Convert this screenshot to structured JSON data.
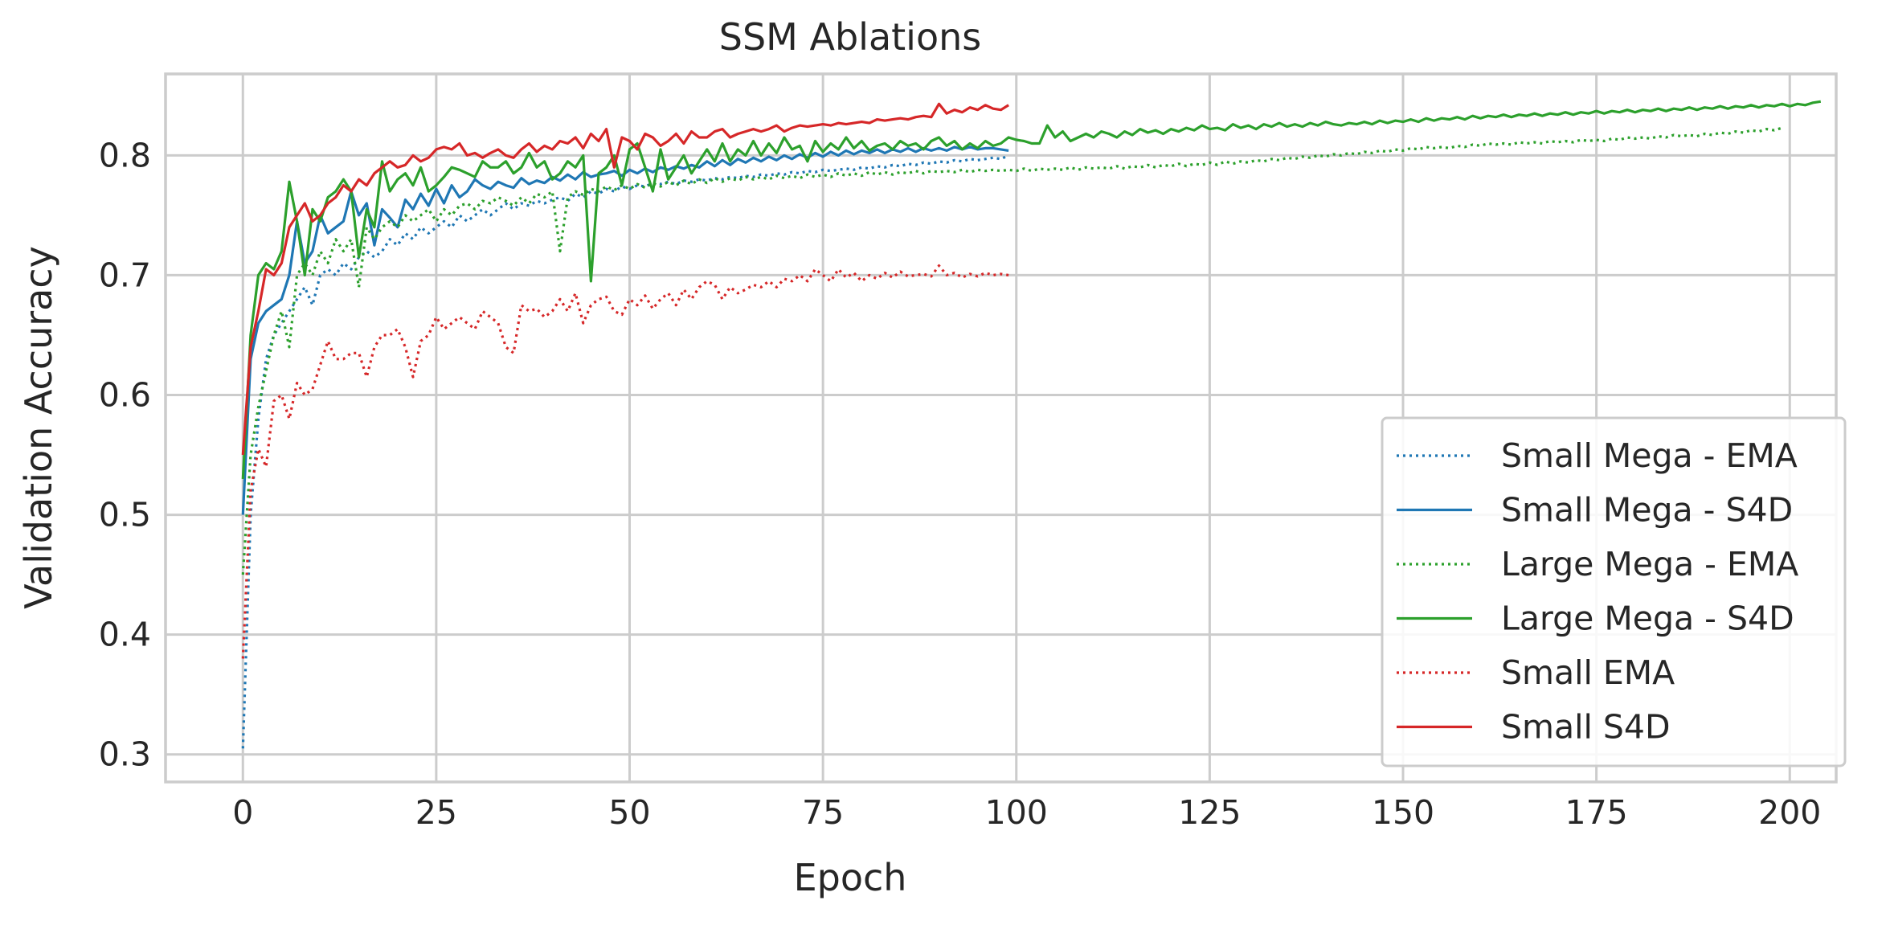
{
  "chart_data": {
    "type": "line",
    "title": "SSM Ablations",
    "xlabel": "Epoch",
    "ylabel": "Validation Accuracy",
    "xlim": [
      -10,
      206
    ],
    "ylim": [
      0.277,
      0.868
    ],
    "xticks": [
      0,
      25,
      50,
      75,
      100,
      125,
      150,
      175,
      200
    ],
    "yticks": [
      0.3,
      0.4,
      0.5,
      0.6,
      0.7,
      0.8
    ],
    "ytick_labels": [
      "0.3",
      "0.4",
      "0.5",
      "0.6",
      "0.7",
      "0.8"
    ],
    "grid": true,
    "legend_position": "lower-right",
    "series": [
      {
        "name": "Small Mega - EMA",
        "color": "#1f77b4",
        "style": "dotted",
        "x_start": 0,
        "values": [
          0.305,
          0.5,
          0.58,
          0.63,
          0.65,
          0.66,
          0.67,
          0.68,
          0.69,
          0.675,
          0.7,
          0.705,
          0.7,
          0.71,
          0.705,
          0.715,
          0.72,
          0.715,
          0.72,
          0.73,
          0.725,
          0.735,
          0.73,
          0.74,
          0.735,
          0.74,
          0.745,
          0.74,
          0.75,
          0.745,
          0.75,
          0.755,
          0.75,
          0.755,
          0.76,
          0.755,
          0.76,
          0.758,
          0.762,
          0.76,
          0.763,
          0.765,
          0.762,
          0.768,
          0.765,
          0.77,
          0.768,
          0.772,
          0.77,
          0.774,
          0.772,
          0.775,
          0.774,
          0.777,
          0.776,
          0.778,
          0.776,
          0.779,
          0.778,
          0.78,
          0.779,
          0.781,
          0.78,
          0.782,
          0.781,
          0.783,
          0.782,
          0.784,
          0.783,
          0.785,
          0.784,
          0.786,
          0.785,
          0.787,
          0.786,
          0.788,
          0.787,
          0.788,
          0.789,
          0.788,
          0.79,
          0.789,
          0.791,
          0.79,
          0.792,
          0.791,
          0.793,
          0.792,
          0.794,
          0.793,
          0.795,
          0.794,
          0.796,
          0.795,
          0.797,
          0.796,
          0.797,
          0.798,
          0.797,
          0.8
        ]
      },
      {
        "name": "Small Mega - S4D",
        "color": "#1f77b4",
        "style": "solid",
        "x_start": 0,
        "values": [
          0.5,
          0.63,
          0.66,
          0.67,
          0.675,
          0.68,
          0.7,
          0.745,
          0.71,
          0.72,
          0.75,
          0.735,
          0.74,
          0.745,
          0.77,
          0.75,
          0.76,
          0.725,
          0.755,
          0.748,
          0.74,
          0.763,
          0.755,
          0.768,
          0.758,
          0.772,
          0.76,
          0.775,
          0.765,
          0.77,
          0.78,
          0.775,
          0.772,
          0.778,
          0.775,
          0.773,
          0.781,
          0.776,
          0.779,
          0.777,
          0.782,
          0.779,
          0.784,
          0.78,
          0.786,
          0.782,
          0.784,
          0.785,
          0.787,
          0.783,
          0.788,
          0.785,
          0.789,
          0.786,
          0.79,
          0.788,
          0.791,
          0.789,
          0.792,
          0.79,
          0.795,
          0.791,
          0.796,
          0.792,
          0.797,
          0.794,
          0.798,
          0.795,
          0.799,
          0.796,
          0.8,
          0.797,
          0.801,
          0.798,
          0.802,
          0.799,
          0.803,
          0.8,
          0.804,
          0.801,
          0.804,
          0.802,
          0.805,
          0.802,
          0.805,
          0.803,
          0.806,
          0.803,
          0.806,
          0.804,
          0.806,
          0.804,
          0.807,
          0.805,
          0.807,
          0.805,
          0.806,
          0.806,
          0.805,
          0.804
        ]
      },
      {
        "name": "Large Mega - EMA",
        "color": "#2ca02c",
        "style": "dotted",
        "x_start": 0,
        "values": [
          0.45,
          0.55,
          0.59,
          0.62,
          0.65,
          0.67,
          0.64,
          0.7,
          0.71,
          0.7,
          0.72,
          0.71,
          0.73,
          0.72,
          0.73,
          0.69,
          0.74,
          0.73,
          0.74,
          0.745,
          0.74,
          0.75,
          0.745,
          0.75,
          0.755,
          0.745,
          0.755,
          0.75,
          0.758,
          0.76,
          0.755,
          0.762,
          0.76,
          0.765,
          0.762,
          0.758,
          0.765,
          0.76,
          0.768,
          0.765,
          0.77,
          0.72,
          0.765,
          0.77,
          0.767,
          0.772,
          0.77,
          0.774,
          0.771,
          0.775,
          0.772,
          0.776,
          0.773,
          0.777,
          0.774,
          0.778,
          0.775,
          0.779,
          0.776,
          0.78,
          0.777,
          0.781,
          0.778,
          0.781,
          0.779,
          0.782,
          0.78,
          0.782,
          0.78,
          0.783,
          0.781,
          0.783,
          0.781,
          0.784,
          0.782,
          0.784,
          0.782,
          0.785,
          0.783,
          0.785,
          0.783,
          0.786,
          0.784,
          0.786,
          0.784,
          0.786,
          0.785,
          0.787,
          0.785,
          0.787,
          0.786,
          0.787,
          0.786,
          0.788,
          0.786,
          0.788,
          0.787,
          0.788,
          0.787,
          0.788,
          0.787,
          0.789,
          0.787,
          0.789,
          0.788,
          0.789,
          0.788,
          0.79,
          0.788,
          0.79,
          0.789,
          0.79,
          0.789,
          0.791,
          0.789,
          0.791,
          0.79,
          0.792,
          0.79,
          0.792,
          0.791,
          0.793,
          0.791,
          0.793,
          0.792,
          0.794,
          0.792,
          0.795,
          0.793,
          0.795,
          0.794,
          0.796,
          0.795,
          0.797,
          0.796,
          0.798,
          0.797,
          0.799,
          0.798,
          0.8,
          0.799,
          0.801,
          0.8,
          0.802,
          0.801,
          0.803,
          0.802,
          0.804,
          0.803,
          0.805,
          0.804,
          0.806,
          0.805,
          0.807,
          0.806,
          0.807,
          0.806,
          0.808,
          0.807,
          0.809,
          0.808,
          0.81,
          0.809,
          0.81,
          0.809,
          0.811,
          0.81,
          0.811,
          0.81,
          0.812,
          0.811,
          0.812,
          0.811,
          0.813,
          0.812,
          0.813,
          0.812,
          0.814,
          0.813,
          0.815,
          0.814,
          0.815,
          0.814,
          0.816,
          0.815,
          0.817,
          0.816,
          0.817,
          0.816,
          0.818,
          0.817,
          0.819,
          0.818,
          0.82,
          0.819,
          0.821,
          0.82,
          0.822,
          0.821,
          0.823
        ]
      },
      {
        "name": "Large Mega - S4D",
        "color": "#2ca02c",
        "style": "solid",
        "x_start": 0,
        "values": [
          0.53,
          0.65,
          0.7,
          0.71,
          0.705,
          0.72,
          0.778,
          0.745,
          0.7,
          0.755,
          0.745,
          0.765,
          0.77,
          0.78,
          0.77,
          0.715,
          0.755,
          0.74,
          0.795,
          0.77,
          0.78,
          0.785,
          0.775,
          0.79,
          0.77,
          0.775,
          0.782,
          0.79,
          0.788,
          0.785,
          0.782,
          0.795,
          0.79,
          0.79,
          0.795,
          0.785,
          0.79,
          0.802,
          0.79,
          0.795,
          0.78,
          0.785,
          0.795,
          0.79,
          0.8,
          0.695,
          0.785,
          0.79,
          0.8,
          0.775,
          0.805,
          0.81,
          0.79,
          0.77,
          0.805,
          0.78,
          0.79,
          0.8,
          0.785,
          0.795,
          0.805,
          0.795,
          0.81,
          0.795,
          0.805,
          0.8,
          0.812,
          0.8,
          0.81,
          0.802,
          0.815,
          0.805,
          0.808,
          0.795,
          0.812,
          0.803,
          0.81,
          0.805,
          0.815,
          0.806,
          0.812,
          0.804,
          0.808,
          0.81,
          0.805,
          0.812,
          0.808,
          0.81,
          0.805,
          0.812,
          0.815,
          0.808,
          0.812,
          0.805,
          0.81,
          0.806,
          0.812,
          0.808,
          0.81,
          0.815,
          0.813,
          0.812,
          0.81,
          0.81,
          0.825,
          0.815,
          0.82,
          0.812,
          0.815,
          0.818,
          0.815,
          0.82,
          0.818,
          0.815,
          0.82,
          0.817,
          0.822,
          0.819,
          0.821,
          0.818,
          0.822,
          0.82,
          0.823,
          0.821,
          0.825,
          0.822,
          0.823,
          0.821,
          0.826,
          0.823,
          0.825,
          0.822,
          0.826,
          0.824,
          0.827,
          0.824,
          0.826,
          0.824,
          0.827,
          0.825,
          0.828,
          0.826,
          0.825,
          0.827,
          0.826,
          0.828,
          0.826,
          0.829,
          0.827,
          0.829,
          0.828,
          0.83,
          0.828,
          0.831,
          0.829,
          0.831,
          0.83,
          0.832,
          0.83,
          0.833,
          0.831,
          0.833,
          0.832,
          0.834,
          0.832,
          0.834,
          0.833,
          0.835,
          0.833,
          0.835,
          0.834,
          0.836,
          0.834,
          0.836,
          0.835,
          0.837,
          0.835,
          0.837,
          0.836,
          0.838,
          0.836,
          0.838,
          0.837,
          0.839,
          0.837,
          0.839,
          0.838,
          0.84,
          0.838,
          0.84,
          0.839,
          0.841,
          0.839,
          0.841,
          0.84,
          0.842,
          0.84,
          0.842,
          0.841,
          0.843,
          0.841,
          0.843,
          0.842,
          0.844,
          0.845
        ]
      },
      {
        "name": "Small EMA",
        "color": "#d62728",
        "style": "dotted",
        "x_start": 0,
        "values": [
          0.38,
          0.52,
          0.555,
          0.54,
          0.595,
          0.6,
          0.58,
          0.61,
          0.6,
          0.605,
          0.625,
          0.645,
          0.63,
          0.63,
          0.635,
          0.635,
          0.615,
          0.64,
          0.65,
          0.65,
          0.655,
          0.64,
          0.615,
          0.645,
          0.65,
          0.665,
          0.655,
          0.66,
          0.665,
          0.66,
          0.655,
          0.67,
          0.665,
          0.66,
          0.64,
          0.635,
          0.675,
          0.67,
          0.672,
          0.665,
          0.67,
          0.68,
          0.67,
          0.685,
          0.66,
          0.675,
          0.68,
          0.682,
          0.67,
          0.667,
          0.68,
          0.675,
          0.683,
          0.672,
          0.68,
          0.685,
          0.675,
          0.688,
          0.68,
          0.69,
          0.695,
          0.692,
          0.68,
          0.69,
          0.685,
          0.688,
          0.692,
          0.69,
          0.695,
          0.69,
          0.697,
          0.695,
          0.7,
          0.695,
          0.705,
          0.7,
          0.695,
          0.705,
          0.698,
          0.702,
          0.695,
          0.7,
          0.697,
          0.702,
          0.698,
          0.703,
          0.699,
          0.7,
          0.701,
          0.699,
          0.708,
          0.7,
          0.702,
          0.698,
          0.701,
          0.699,
          0.702,
          0.7,
          0.701,
          0.7
        ]
      },
      {
        "name": "Small S4D",
        "color": "#d62728",
        "style": "solid",
        "x_start": 0,
        "values": [
          0.55,
          0.64,
          0.67,
          0.705,
          0.7,
          0.71,
          0.74,
          0.75,
          0.76,
          0.745,
          0.75,
          0.76,
          0.765,
          0.775,
          0.77,
          0.78,
          0.775,
          0.785,
          0.79,
          0.795,
          0.79,
          0.792,
          0.8,
          0.795,
          0.798,
          0.805,
          0.807,
          0.805,
          0.81,
          0.8,
          0.802,
          0.798,
          0.802,
          0.805,
          0.8,
          0.798,
          0.805,
          0.81,
          0.803,
          0.808,
          0.805,
          0.812,
          0.81,
          0.815,
          0.806,
          0.818,
          0.812,
          0.822,
          0.79,
          0.815,
          0.812,
          0.805,
          0.818,
          0.815,
          0.808,
          0.812,
          0.818,
          0.81,
          0.82,
          0.815,
          0.815,
          0.82,
          0.822,
          0.815,
          0.818,
          0.82,
          0.822,
          0.82,
          0.822,
          0.825,
          0.82,
          0.823,
          0.825,
          0.824,
          0.825,
          0.826,
          0.825,
          0.827,
          0.826,
          0.827,
          0.828,
          0.827,
          0.83,
          0.829,
          0.83,
          0.831,
          0.83,
          0.832,
          0.833,
          0.832,
          0.843,
          0.835,
          0.838,
          0.836,
          0.84,
          0.838,
          0.842,
          0.839,
          0.838,
          0.842
        ]
      }
    ]
  }
}
